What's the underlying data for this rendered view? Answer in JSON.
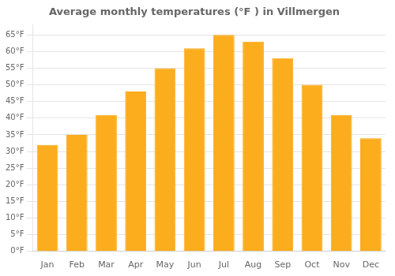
{
  "chart_data": {
    "type": "bar",
    "title": "Average monthly temperatures (°F ) in Villmergen",
    "categories": [
      "Jan",
      "Feb",
      "Mar",
      "Apr",
      "May",
      "Jun",
      "Jul",
      "Aug",
      "Sep",
      "Oct",
      "Nov",
      "Dec"
    ],
    "values": [
      32,
      35,
      41,
      48,
      55,
      61,
      65,
      63,
      58,
      50,
      41,
      34
    ],
    "color": "#FBAD1E",
    "ylim": [
      0,
      68
    ],
    "yticks": [
      {
        "value": 0,
        "label": "0°F"
      },
      {
        "value": 5,
        "label": "5°F"
      },
      {
        "value": 10,
        "label": "10°F"
      },
      {
        "value": 15,
        "label": "15°F"
      },
      {
        "value": 20,
        "label": "20°F"
      },
      {
        "value": 25,
        "label": "25°F"
      },
      {
        "value": 30,
        "label": "30°F"
      },
      {
        "value": 35,
        "label": "35°F"
      },
      {
        "value": 40,
        "label": "40°F"
      },
      {
        "value": 45,
        "label": "45°F"
      },
      {
        "value": 50,
        "label": "50°F"
      },
      {
        "value": 55,
        "label": "55°F"
      },
      {
        "value": 60,
        "label": "60°F"
      },
      {
        "value": 65,
        "label": "65°F"
      }
    ],
    "grid": true
  }
}
